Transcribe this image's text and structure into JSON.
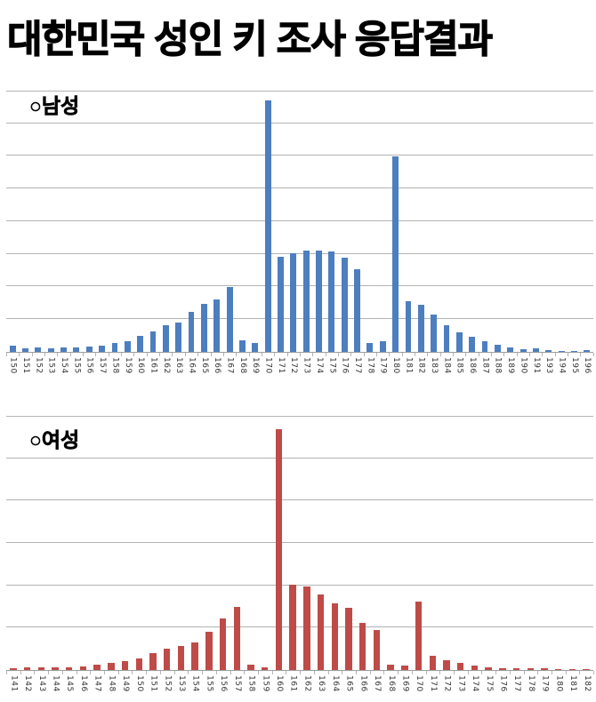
{
  "title": "대한민국 성인 키 조사 응답결과",
  "chart_data": [
    {
      "type": "bar",
      "title": "○남성",
      "color": "#4d7ebf",
      "categories": [
        "150",
        "151",
        "152",
        "153",
        "154",
        "155",
        "156",
        "157",
        "158",
        "159",
        "160",
        "161",
        "162",
        "163",
        "164",
        "165",
        "166",
        "167",
        "168",
        "169",
        "170",
        "171",
        "172",
        "173",
        "174",
        "175",
        "176",
        "177",
        "178",
        "179",
        "180",
        "181",
        "182",
        "183",
        "184",
        "185",
        "186",
        "187",
        "188",
        "189",
        "190",
        "191",
        "193",
        "194",
        "195",
        "196"
      ],
      "values": [
        10,
        5,
        7,
        6,
        7,
        7,
        8,
        10,
        13,
        16,
        25,
        31,
        41,
        45,
        61,
        73,
        80,
        99,
        18,
        13,
        385,
        146,
        151,
        155,
        155,
        154,
        144,
        127,
        13,
        17,
        300,
        78,
        72,
        57,
        41,
        30,
        23,
        16,
        11,
        7,
        4,
        5,
        3,
        2,
        2,
        3
      ],
      "xlabel": "",
      "ylabel": "",
      "y_axis_labels": "none",
      "ylim": [
        0,
        400
      ],
      "gridline_interval": 50,
      "grid": "horizontal",
      "legend": "none"
    },
    {
      "type": "bar",
      "title": "○여성",
      "color": "#bf4b48",
      "categories": [
        "141",
        "142",
        "143",
        "144",
        "145",
        "146",
        "147",
        "148",
        "149",
        "150",
        "151",
        "152",
        "153",
        "154",
        "155",
        "156",
        "157",
        "158",
        "159",
        "160",
        "161",
        "162",
        "163",
        "164",
        "165",
        "166",
        "167",
        "168",
        "169",
        "170",
        "171",
        "172",
        "173",
        "174",
        "175",
        "176",
        "177",
        "178",
        "179",
        "180",
        "181",
        "182"
      ],
      "values": [
        2,
        3,
        3,
        3,
        3,
        4,
        6,
        8,
        11,
        14,
        20,
        25,
        28,
        33,
        45,
        61,
        74,
        6,
        3,
        284,
        101,
        99,
        89,
        79,
        73,
        56,
        47,
        6,
        5,
        81,
        17,
        12,
        8,
        5,
        3,
        2,
        2,
        2,
        2,
        1,
        1,
        1
      ],
      "xlabel": "",
      "ylabel": "",
      "y_axis_labels": "none",
      "ylim": [
        0,
        300
      ],
      "gridline_interval": 50,
      "grid": "horizontal",
      "legend": "none"
    }
  ]
}
